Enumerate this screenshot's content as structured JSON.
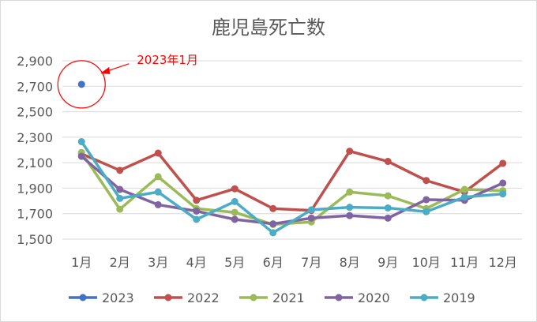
{
  "chart_data": {
    "type": "line",
    "title": "鹿児島死亡数",
    "categories": [
      "1月",
      "2月",
      "3月",
      "4月",
      "5月",
      "6月",
      "7月",
      "8月",
      "9月",
      "10月",
      "11月",
      "12月"
    ],
    "ylim": [
      1500,
      2900
    ],
    "yticks": [
      1500,
      1700,
      1900,
      2100,
      2300,
      2500,
      2700,
      2900
    ],
    "ytick_labels": [
      "1,500",
      "1,700",
      "1,900",
      "2,100",
      "2,300",
      "2,500",
      "2,700",
      "2,900"
    ],
    "grid": true,
    "legend_position": "bottom",
    "series": [
      {
        "name": "2023",
        "color": "#4472c4",
        "values": [
          2715,
          null,
          null,
          null,
          null,
          null,
          null,
          null,
          null,
          null,
          null,
          null
        ]
      },
      {
        "name": "2022",
        "color": "#c0504d",
        "values": [
          2170,
          2040,
          2175,
          1805,
          1895,
          1740,
          1725,
          2190,
          2110,
          1960,
          1870,
          2095
        ]
      },
      {
        "name": "2021",
        "color": "#9bbb59",
        "values": [
          2180,
          1735,
          1990,
          1740,
          1710,
          1615,
          1635,
          1870,
          1840,
          1740,
          1890,
          1880
        ]
      },
      {
        "name": "2020",
        "color": "#8064a2",
        "values": [
          2150,
          1890,
          1770,
          1720,
          1655,
          1620,
          1665,
          1685,
          1665,
          1810,
          1805,
          1940
        ]
      },
      {
        "name": "2019",
        "color": "#4bacc6",
        "values": [
          2265,
          1820,
          1870,
          1655,
          1795,
          1550,
          1730,
          1750,
          1745,
          1715,
          1830,
          1855
        ]
      }
    ],
    "annotation": {
      "text": "2023年1月",
      "color": "#ff0000",
      "target_series": "2023",
      "target_index": 0
    }
  }
}
